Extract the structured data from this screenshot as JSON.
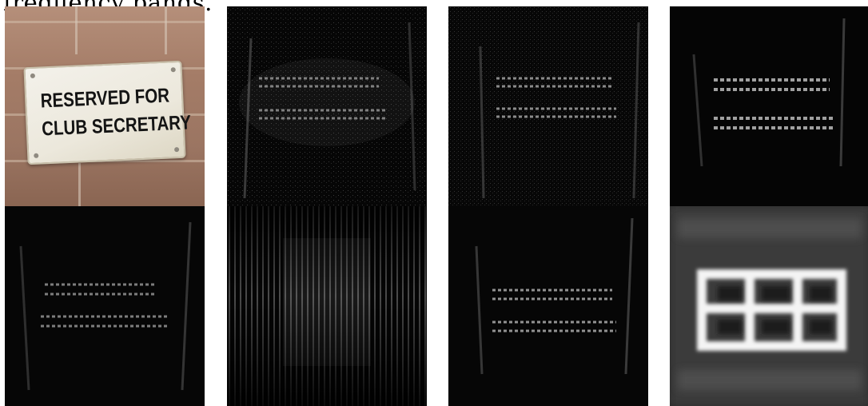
{
  "caption": {
    "text": "frequency bands."
  },
  "photo": {
    "sign_line_1": "RESERVED FOR",
    "sign_line_2": "CLUB SECRETARY"
  },
  "panels": [
    {
      "id": "original-photo",
      "kind": "photo"
    },
    {
      "id": "band-1",
      "kind": "band-response",
      "brightness": 0.35
    },
    {
      "id": "band-2",
      "kind": "band-response",
      "brightness": 0.4
    },
    {
      "id": "band-3",
      "kind": "band-response",
      "brightness": 0.45
    },
    {
      "id": "band-4",
      "kind": "band-response",
      "brightness": 0.35
    },
    {
      "id": "band-5",
      "kind": "vertical-stripes",
      "brightness": 0.5
    },
    {
      "id": "band-6",
      "kind": "band-response",
      "brightness": 0.45
    },
    {
      "id": "band-7",
      "kind": "low-frequency",
      "brightness": 1.0
    }
  ],
  "colors": {
    "background": "#ffffff",
    "tile_dark": "#050505",
    "sign_text": "#141414"
  }
}
